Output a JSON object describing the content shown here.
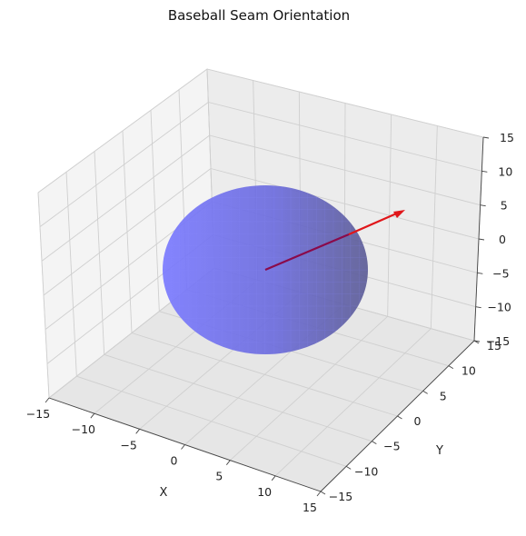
{
  "chart_data": {
    "type": "3d-surface-with-vector",
    "title": "Baseball Seam Orientation",
    "xlabel": "X",
    "ylabel": "Y",
    "zlabel": "",
    "xlim": [
      -15,
      15
    ],
    "ylim": [
      -15,
      15
    ],
    "zlim": [
      -15,
      15
    ],
    "xticks": [
      -15,
      -10,
      -5,
      0,
      5,
      10,
      15
    ],
    "yticks": [
      -15,
      -10,
      -5,
      0,
      5,
      10,
      15
    ],
    "zticks": [
      -15,
      -10,
      -5,
      0,
      5,
      10,
      15
    ],
    "grid": true,
    "sphere": {
      "center": [
        0,
        0,
        0
      ],
      "radius": 9,
      "color": "#6a6aff",
      "alpha": 0.85
    },
    "vector": {
      "origin": [
        0,
        0,
        0
      ],
      "direction": [
        14,
        0,
        7
      ],
      "color": "#e0161a"
    }
  }
}
